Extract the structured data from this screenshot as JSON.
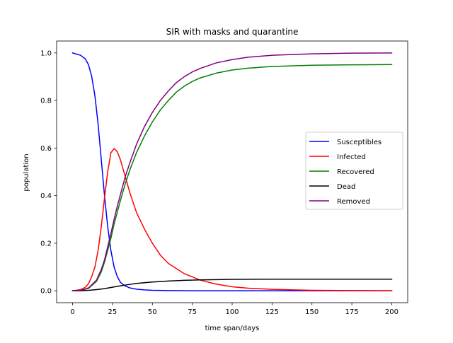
{
  "chart_data": {
    "type": "line",
    "title": "SIR with masks and quarantine",
    "xlabel": "time span/days",
    "ylabel": "population",
    "xlim": [
      -10,
      210
    ],
    "ylim": [
      -0.05,
      1.05
    ],
    "xticks": [
      0,
      25,
      50,
      75,
      100,
      125,
      150,
      175,
      200
    ],
    "yticks": [
      0.0,
      0.2,
      0.4,
      0.6,
      0.8,
      1.0
    ],
    "xtick_labels": [
      "0",
      "25",
      "50",
      "75",
      "100",
      "125",
      "150",
      "175",
      "200"
    ],
    "ytick_labels": [
      "0.0",
      "0.2",
      "0.4",
      "0.6",
      "0.8",
      "1.0"
    ],
    "grid": false,
    "legend_position": "center-right",
    "series": [
      {
        "name": "Susceptibles",
        "color": "#0000ff",
        "x": [
          0,
          5,
          8,
          10,
          12,
          14,
          16,
          18,
          20,
          22,
          24,
          26,
          28,
          30,
          33,
          36,
          40,
          45,
          50,
          60,
          75,
          100,
          125,
          150,
          175,
          200
        ],
        "y": [
          1.0,
          0.99,
          0.975,
          0.95,
          0.9,
          0.82,
          0.7,
          0.55,
          0.4,
          0.27,
          0.17,
          0.1,
          0.06,
          0.035,
          0.02,
          0.012,
          0.007,
          0.004,
          0.002,
          0.001,
          0.0,
          0.0,
          0.0,
          0.0,
          0.0,
          0.0
        ]
      },
      {
        "name": "Infected",
        "color": "#ff0000",
        "x": [
          0,
          5,
          8,
          10,
          12,
          14,
          16,
          18,
          20,
          22,
          24,
          26,
          28,
          30,
          33,
          36,
          40,
          45,
          50,
          55,
          60,
          70,
          80,
          90,
          100,
          110,
          125,
          150,
          175,
          200
        ],
        "y": [
          0.0,
          0.005,
          0.015,
          0.03,
          0.06,
          0.1,
          0.17,
          0.27,
          0.39,
          0.5,
          0.58,
          0.598,
          0.585,
          0.55,
          0.48,
          0.41,
          0.33,
          0.26,
          0.2,
          0.15,
          0.115,
          0.072,
          0.045,
          0.028,
          0.017,
          0.011,
          0.006,
          0.002,
          0.001,
          0.0
        ]
      },
      {
        "name": "Recovered",
        "color": "#008000",
        "x": [
          0,
          5,
          10,
          15,
          18,
          20,
          22,
          24,
          26,
          28,
          30,
          33,
          36,
          40,
          45,
          50,
          55,
          60,
          65,
          70,
          75,
          80,
          90,
          100,
          110,
          125,
          150,
          175,
          200
        ],
        "y": [
          0.0,
          0.002,
          0.01,
          0.04,
          0.08,
          0.12,
          0.17,
          0.22,
          0.28,
          0.33,
          0.38,
          0.45,
          0.51,
          0.58,
          0.65,
          0.71,
          0.76,
          0.8,
          0.835,
          0.86,
          0.88,
          0.895,
          0.915,
          0.928,
          0.936,
          0.943,
          0.948,
          0.95,
          0.951
        ]
      },
      {
        "name": "Dead",
        "color": "#000000",
        "x": [
          0,
          5,
          10,
          15,
          20,
          25,
          30,
          35,
          40,
          45,
          50,
          60,
          70,
          80,
          90,
          100,
          125,
          150,
          175,
          200
        ],
        "y": [
          0.0,
          0.0,
          0.002,
          0.005,
          0.009,
          0.015,
          0.021,
          0.026,
          0.031,
          0.034,
          0.037,
          0.041,
          0.044,
          0.046,
          0.047,
          0.048,
          0.049,
          0.049,
          0.049,
          0.049
        ]
      },
      {
        "name": "Removed",
        "color": "#800080",
        "x": [
          0,
          5,
          10,
          15,
          18,
          20,
          22,
          24,
          26,
          28,
          30,
          33,
          36,
          40,
          45,
          50,
          55,
          60,
          65,
          70,
          75,
          80,
          90,
          100,
          110,
          125,
          150,
          175,
          200
        ],
        "y": [
          0.0,
          0.002,
          0.012,
          0.045,
          0.09,
          0.13,
          0.185,
          0.24,
          0.3,
          0.355,
          0.405,
          0.48,
          0.54,
          0.615,
          0.69,
          0.75,
          0.8,
          0.84,
          0.875,
          0.9,
          0.92,
          0.935,
          0.958,
          0.972,
          0.982,
          0.99,
          0.996,
          0.999,
          1.0
        ]
      }
    ]
  }
}
